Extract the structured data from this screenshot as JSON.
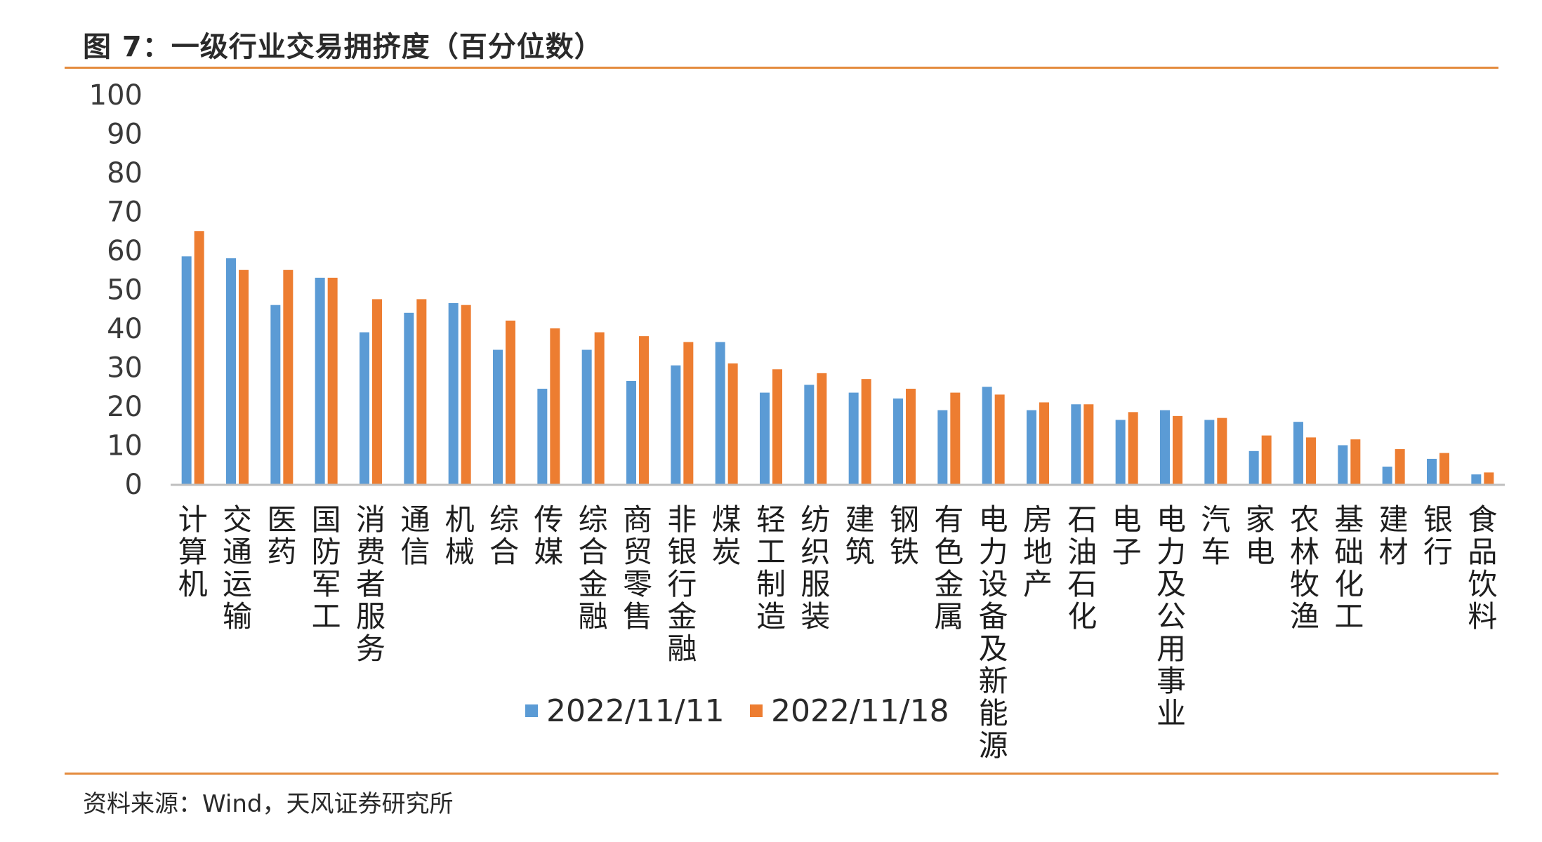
{
  "figure": {
    "title": "图 7：一级行业交易拥挤度（百分位数）",
    "source": "资料来源：Wind，天风证券研究所"
  },
  "colors": {
    "accent_rule": "#e48b3d",
    "series_1": "#5b9bd5",
    "series_2": "#ed7d31",
    "axis": "#bfbfbf"
  },
  "chart_data": {
    "type": "bar",
    "title": "图 7：一级行业交易拥挤度（百分位数）",
    "xlabel": "",
    "ylabel": "",
    "ylim": [
      0,
      100
    ],
    "yticks": [
      0,
      10,
      20,
      30,
      40,
      50,
      60,
      70,
      80,
      90,
      100
    ],
    "grid": false,
    "legend_position": "bottom",
    "categories": [
      "计算机",
      "交通运输",
      "医药",
      "国防军工",
      "消费者服务",
      "通信",
      "机械",
      "综合",
      "传媒",
      "综合金融",
      "商贸零售",
      "非银行金融",
      "煤炭",
      "轻工制造",
      "纺织服装",
      "建筑",
      "钢铁",
      "有色金属",
      "电力设备及新能源",
      "房地产",
      "石油石化",
      "电子",
      "电力及公用事业",
      "汽车",
      "家电",
      "农林牧渔",
      "基础化工",
      "建材",
      "银行",
      "食品饮料"
    ],
    "series": [
      {
        "name": "2022/11/11",
        "color": "#5b9bd5",
        "values": [
          58.5,
          58,
          46,
          53,
          39,
          44,
          46.5,
          34.5,
          24.5,
          34.5,
          26.5,
          30.5,
          36.5,
          23.5,
          25.5,
          23.5,
          22,
          19,
          25,
          19,
          20.5,
          16.5,
          19,
          16.5,
          8.5,
          16,
          10,
          4.5,
          6.5,
          2.5
        ]
      },
      {
        "name": "2022/11/18",
        "color": "#ed7d31",
        "values": [
          65,
          55,
          55,
          53,
          47.5,
          47.5,
          46,
          42,
          40,
          39,
          38,
          36.5,
          31,
          29.5,
          28.5,
          27,
          24.5,
          23.5,
          23,
          21,
          20.5,
          18.5,
          17.5,
          17,
          12.5,
          12,
          11.5,
          9,
          8,
          3
        ]
      }
    ]
  }
}
